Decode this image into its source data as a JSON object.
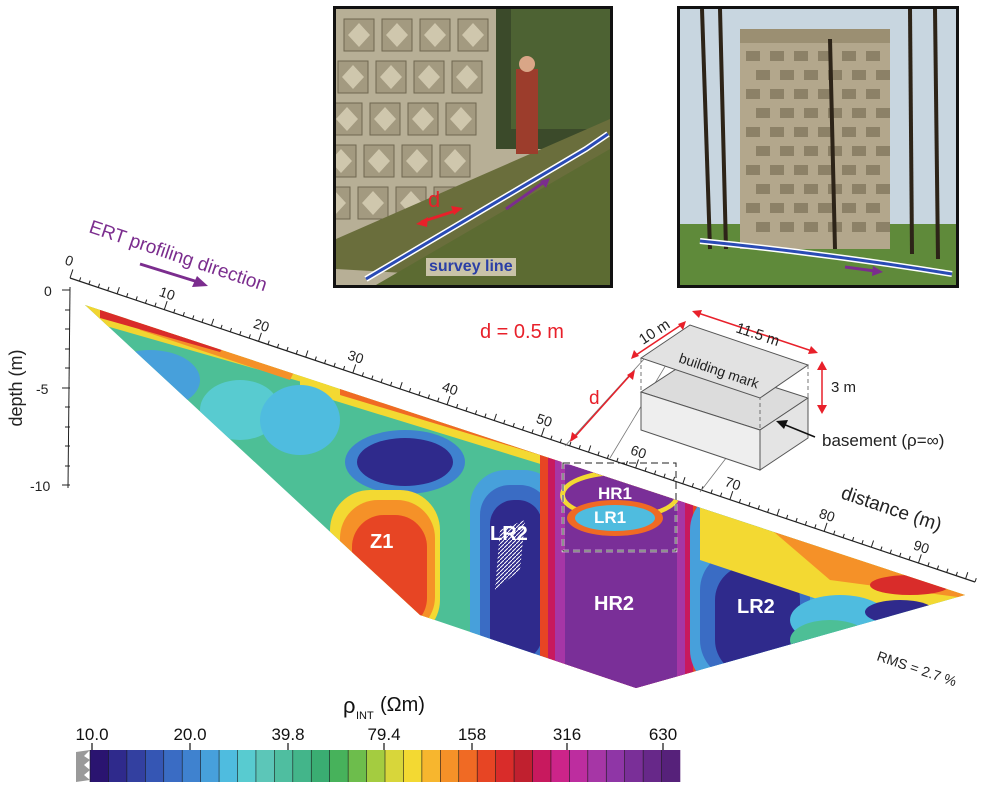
{
  "profile": {
    "direction_label": "ERT profiling direction",
    "depth_axis_label": "depth (m)",
    "depth_ticks": [
      "0",
      "-5",
      "-10"
    ],
    "distance_axis_label": "distance (m)",
    "distance_ticks": [
      "0",
      "10",
      "20",
      "30",
      "40",
      "50",
      "60",
      "70",
      "80",
      "90"
    ],
    "electrode_spacing": "d = 0.5 m",
    "rms": "RMS = 2.7 %",
    "zones": [
      "Z1",
      "LR2",
      "HR1",
      "LR1",
      "HR2",
      "LR2"
    ]
  },
  "photos": {
    "left": {
      "spacing_label": "d",
      "line_label": "survey line"
    },
    "right": {}
  },
  "building": {
    "width": "11.5 m",
    "depth": "10 m",
    "height": "3 m",
    "spacing_label": "d",
    "top_label": "building mark",
    "bottom_label": "basement (ρ=∞)"
  },
  "colorbar": {
    "title": "ρ",
    "title_sub": "INT",
    "title_unit": "(Ωm)",
    "ticks": [
      "10.0",
      "20.0",
      "39.8",
      "79.4",
      "158",
      "316",
      "630"
    ],
    "colors": [
      "#2a1470",
      "#2f2a8c",
      "#3340a0",
      "#3556b4",
      "#3a6cc4",
      "#3f82cf",
      "#47a0db",
      "#4fbcdf",
      "#58cbd0",
      "#5cc6b8",
      "#4fbea0",
      "#43b58a",
      "#3aad72",
      "#47b25b",
      "#6dbd4c",
      "#a4cc40",
      "#d8d63a",
      "#f3d932",
      "#f7b62e",
      "#f59128",
      "#f06a24",
      "#e74524",
      "#d92c2a",
      "#c0202f",
      "#c8195e",
      "#cc2489",
      "#bd2d9f",
      "#a636a6",
      "#8f36a6",
      "#7a2f98",
      "#672889",
      "#56217a"
    ]
  }
}
